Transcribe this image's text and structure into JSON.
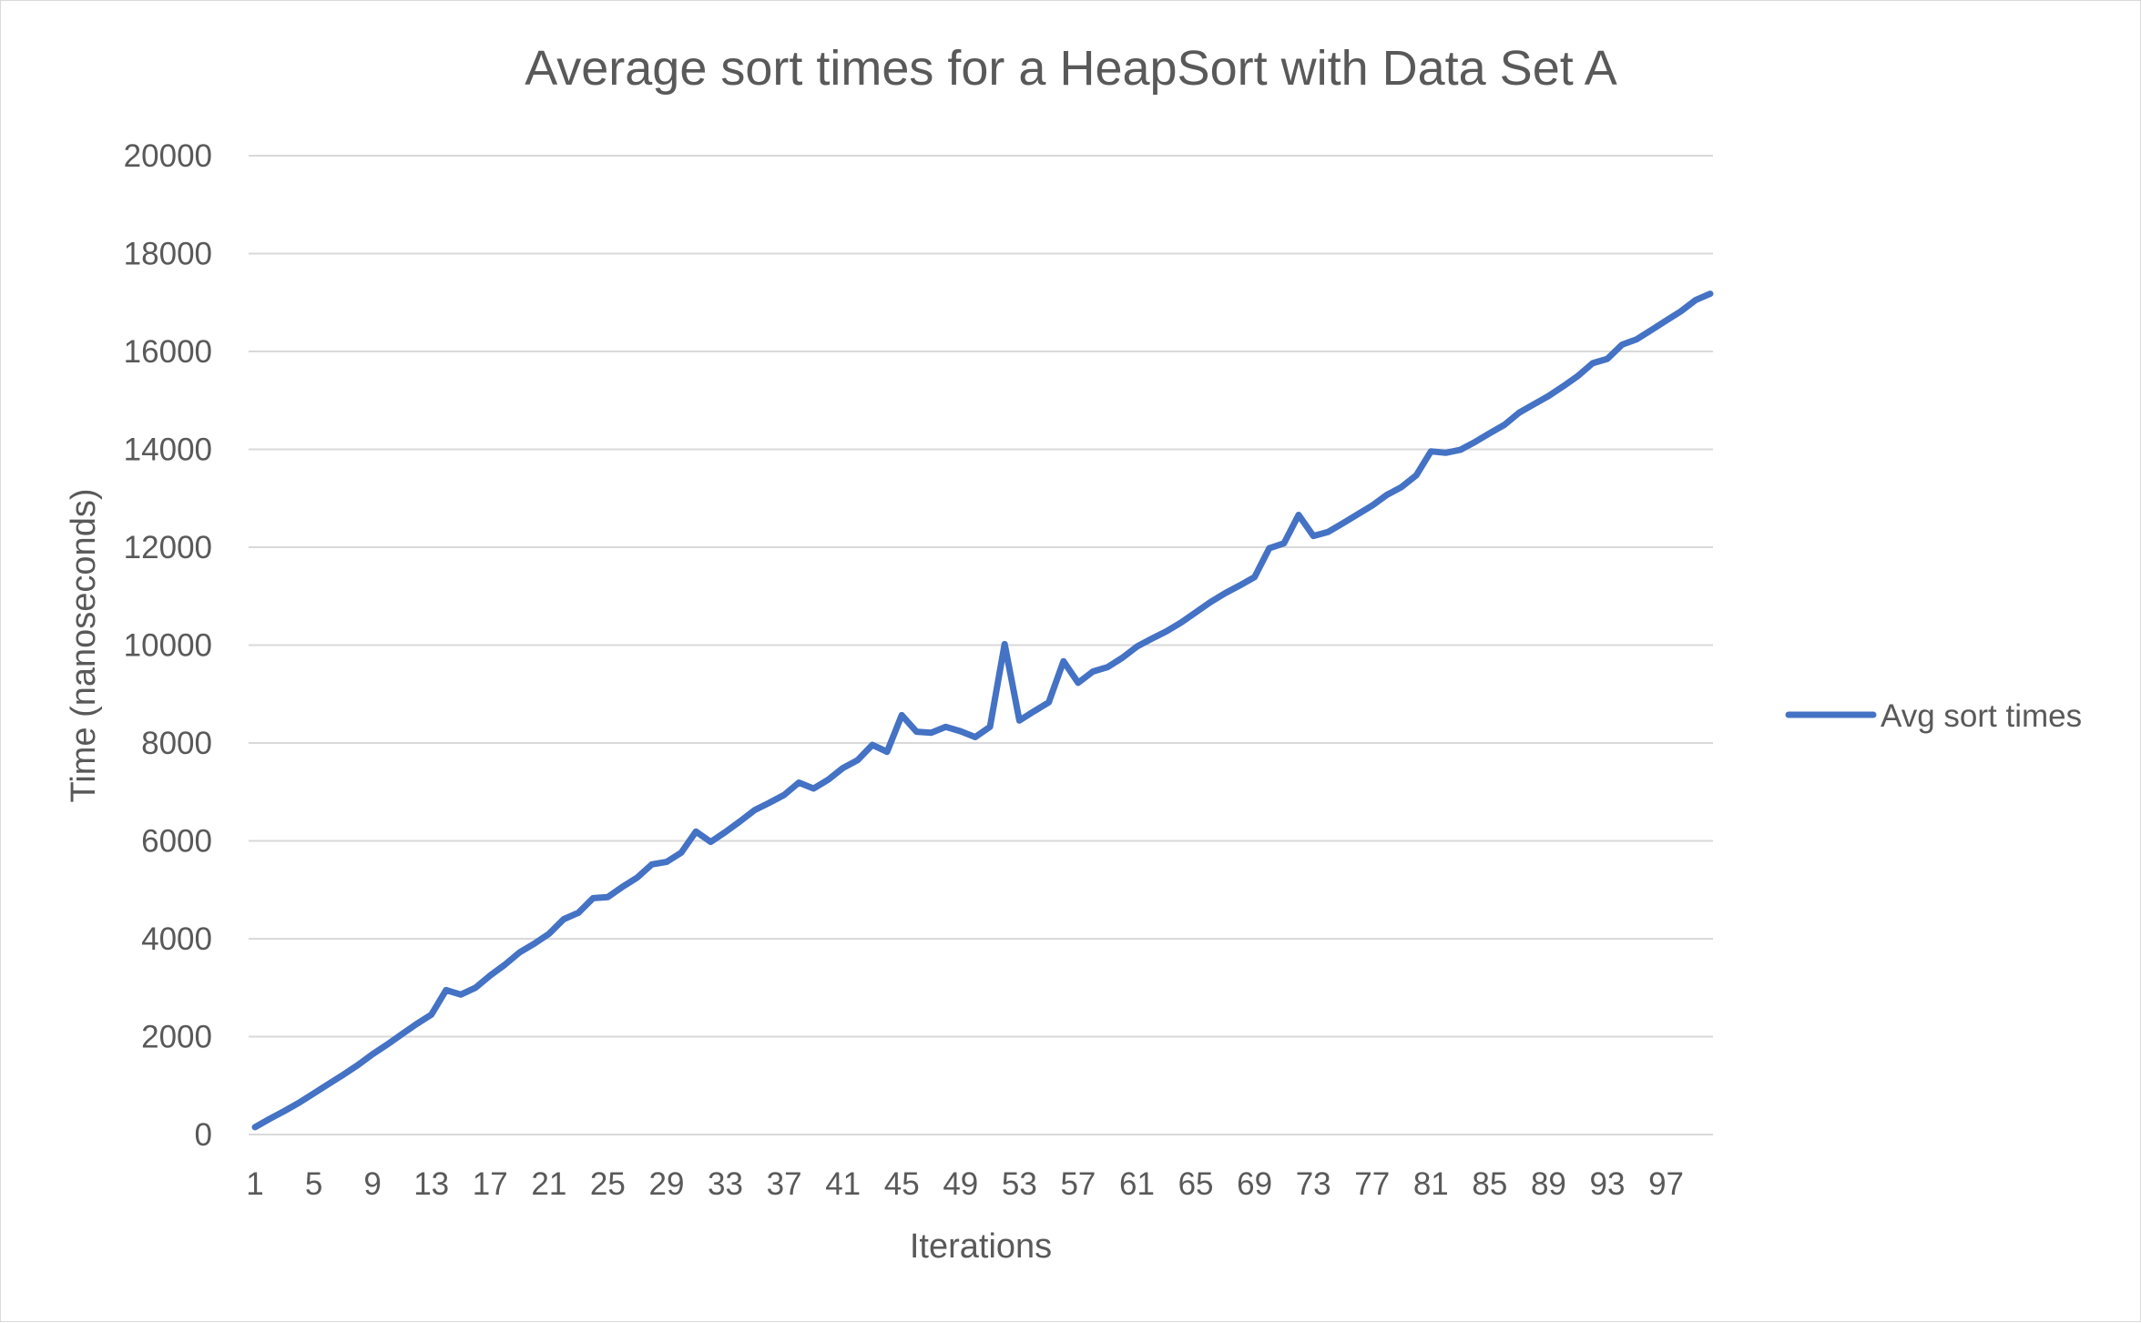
{
  "chart_data": {
    "type": "line",
    "title": "Average sort times for a HeapSort with Data Set A",
    "xlabel": "Iterations",
    "ylabel": "Time (nanoseconds)",
    "ylim": [
      0,
      20000
    ],
    "y_ticks": [
      "0",
      "2000",
      "4000",
      "6000",
      "8000",
      "10000",
      "12000",
      "14000",
      "16000",
      "18000",
      "20000"
    ],
    "x_tick_labels": [
      "1",
      "5",
      "9",
      "13",
      "17",
      "21",
      "25",
      "29",
      "33",
      "37",
      "41",
      "45",
      "49",
      "53",
      "57",
      "61",
      "65",
      "69",
      "73",
      "77",
      "81",
      "85",
      "89",
      "93",
      "97"
    ],
    "x_tick_every": 4,
    "grid": true,
    "legend_position": "right",
    "series": [
      {
        "name": "Avg sort times",
        "color": "#4472c4",
        "x": [
          1,
          2,
          3,
          4,
          5,
          6,
          7,
          8,
          9,
          10,
          11,
          12,
          13,
          14,
          15,
          16,
          17,
          18,
          19,
          20,
          21,
          22,
          23,
          24,
          25,
          26,
          27,
          28,
          29,
          30,
          31,
          32,
          33,
          34,
          35,
          36,
          37,
          38,
          39,
          40,
          41,
          42,
          43,
          44,
          45,
          46,
          47,
          48,
          49,
          50,
          51,
          52,
          53,
          54,
          55,
          56,
          57,
          58,
          59,
          60,
          61,
          62,
          63,
          64,
          65,
          66,
          67,
          68,
          69,
          70,
          71,
          72,
          73,
          74,
          75,
          76,
          77,
          78,
          79,
          80,
          81,
          82,
          83,
          84,
          85,
          86,
          87,
          88,
          89,
          90,
          91,
          92,
          93,
          94,
          95,
          96,
          97,
          98,
          99,
          100
        ],
        "values": [
          150,
          320,
          480,
          650,
          840,
          1030,
          1220,
          1420,
          1640,
          1840,
          2050,
          2260,
          2450,
          2950,
          2860,
          3000,
          3250,
          3470,
          3720,
          3900,
          4100,
          4400,
          4530,
          4830,
          4850,
          5060,
          5250,
          5520,
          5570,
          5760,
          6190,
          5980,
          6180,
          6400,
          6630,
          6780,
          6940,
          7190,
          7070,
          7250,
          7490,
          7650,
          7960,
          7820,
          8570,
          8230,
          8210,
          8330,
          8240,
          8120,
          8330,
          10020,
          8460,
          8650,
          8830,
          9670,
          9230,
          9460,
          9550,
          9740,
          9970,
          10130,
          10280,
          10460,
          10670,
          10880,
          11060,
          11220,
          11390,
          11980,
          12080,
          12660,
          12230,
          12310,
          12490,
          12670,
          12850,
          13070,
          13230,
          13470,
          13960,
          13930,
          13990,
          14150,
          14330,
          14500,
          14750,
          14920,
          15090,
          15290,
          15500,
          15760,
          15850,
          16140,
          16250,
          16440,
          16630,
          16820,
          17050,
          17180
        ]
      }
    ]
  }
}
